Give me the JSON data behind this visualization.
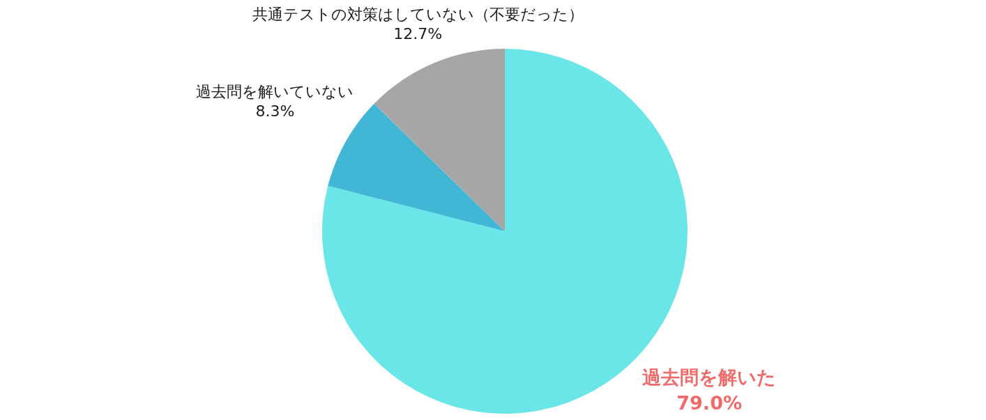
{
  "chart_data": {
    "type": "pie",
    "categories": [
      "過去問を解いた",
      "過去問を解いていない",
      "共通テストの対策はしていない（不要だった）"
    ],
    "values": [
      79.0,
      8.3,
      12.7
    ],
    "colors": [
      "#6ae5e8",
      "#42b7d5",
      "#a6a6a6"
    ],
    "value_labels": [
      "79.0%",
      "8.3%",
      "12.7%"
    ],
    "legend": false
  }
}
